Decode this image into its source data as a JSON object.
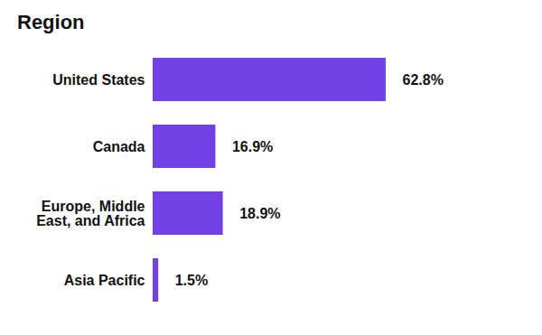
{
  "chart_data": {
    "type": "bar",
    "title": "Region",
    "orientation": "horizontal",
    "categories": [
      "United States",
      "Canada",
      "Europe, Middle East, and Africa",
      "Asia Pacific"
    ],
    "values": [
      62.8,
      16.9,
      18.9,
      1.5
    ],
    "value_labels": [
      "62.8%",
      "16.9%",
      "18.9%",
      "1.5%"
    ],
    "color": "#7241e3",
    "data_labels": true,
    "tick_labels": "y",
    "grid": false
  }
}
